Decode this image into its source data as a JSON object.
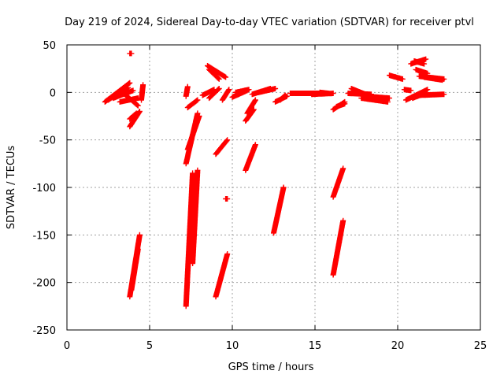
{
  "chart_data": {
    "type": "scatter",
    "title": "Day 219 of 2024, Sidereal Day-to-day VTEC variation (SDTVAR) for receiver ptvl",
    "xlabel": "GPS time / hours",
    "ylabel": "SDTVAR / TECUs",
    "xlim": [
      0,
      25
    ],
    "ylim": [
      -250,
      50
    ],
    "xticks": [
      "0",
      "5",
      "10",
      "15",
      "20",
      "25"
    ],
    "yticks": [
      "50",
      "0",
      "-50",
      "-100",
      "-150",
      "-200",
      "-250"
    ],
    "grid": true,
    "marker": "plus",
    "series": [
      {
        "color": "#ff0000",
        "arcs": [
          {
            "x0": 2.3,
            "y0": -10,
            "x1": 3.8,
            "y1": 10
          },
          {
            "x0": 2.5,
            "y0": -8,
            "x1": 3.5,
            "y1": 4
          },
          {
            "x0": 2.8,
            "y0": -6,
            "x1": 4.0,
            "y1": 2
          },
          {
            "x0": 3.0,
            "y0": -4,
            "x1": 3.7,
            "y1": 5
          },
          {
            "x0": 3.2,
            "y0": -10,
            "x1": 4.3,
            "y1": -6
          },
          {
            "x0": 3.5,
            "y0": -2,
            "x1": 4.3,
            "y1": -14
          },
          {
            "x0": 3.8,
            "y0": -36,
            "x1": 4.4,
            "y1": -20
          },
          {
            "x0": 3.8,
            "y0": -28,
            "x1": 4.2,
            "y1": -22
          },
          {
            "x0": 3.8,
            "y0": 41,
            "x1": 3.9,
            "y1": 41
          },
          {
            "x0": 4.5,
            "y0": -8,
            "x1": 4.6,
            "y1": 8
          },
          {
            "x0": 3.8,
            "y0": -215,
            "x1": 4.4,
            "y1": -150
          },
          {
            "x0": 3.9,
            "y0": -208,
            "x1": 4.3,
            "y1": -165
          },
          {
            "x0": 7.2,
            "y0": -225,
            "x1": 7.6,
            "y1": -85
          },
          {
            "x0": 7.6,
            "y0": -180,
            "x1": 7.9,
            "y1": -82
          },
          {
            "x0": 7.2,
            "y0": -75,
            "x1": 7.9,
            "y1": -22
          },
          {
            "x0": 7.3,
            "y0": -60,
            "x1": 8.0,
            "y1": -25
          },
          {
            "x0": 7.2,
            "y0": -4,
            "x1": 7.3,
            "y1": 6
          },
          {
            "x0": 7.3,
            "y0": -16,
            "x1": 7.9,
            "y1": -8
          },
          {
            "x0": 8.5,
            "y0": 28,
            "x1": 9.6,
            "y1": 16
          },
          {
            "x0": 8.6,
            "y0": 24,
            "x1": 9.2,
            "y1": 14
          },
          {
            "x0": 8.2,
            "y0": -3,
            "x1": 8.9,
            "y1": 3
          },
          {
            "x0": 8.6,
            "y0": -6,
            "x1": 9.2,
            "y1": 4
          },
          {
            "x0": 9.0,
            "y0": -215,
            "x1": 9.7,
            "y1": -170
          },
          {
            "x0": 9.0,
            "y0": -65,
            "x1": 9.7,
            "y1": -50
          },
          {
            "x0": 9.6,
            "y0": -112,
            "x1": 9.7,
            "y1": -112
          },
          {
            "x0": 9.4,
            "y0": -8,
            "x1": 9.8,
            "y1": 3
          },
          {
            "x0": 10.0,
            "y0": -5,
            "x1": 10.9,
            "y1": 2
          },
          {
            "x0": 10.2,
            "y0": 0,
            "x1": 11.0,
            "y1": 3
          },
          {
            "x0": 10.8,
            "y0": -82,
            "x1": 11.4,
            "y1": -55
          },
          {
            "x0": 10.8,
            "y0": -30,
            "x1": 11.3,
            "y1": -18
          },
          {
            "x0": 10.9,
            "y0": -22,
            "x1": 11.4,
            "y1": -8
          },
          {
            "x0": 11.2,
            "y0": -2,
            "x1": 12.3,
            "y1": 4
          },
          {
            "x0": 11.6,
            "y0": 0,
            "x1": 12.6,
            "y1": 4
          },
          {
            "x0": 12.5,
            "y0": -148,
            "x1": 13.1,
            "y1": -100
          },
          {
            "x0": 12.6,
            "y0": -10,
            "x1": 13.3,
            "y1": -4
          },
          {
            "x0": 12.9,
            "y0": -8,
            "x1": 13.2,
            "y1": -3
          },
          {
            "x0": 13.5,
            "y0": -1,
            "x1": 15.5,
            "y1": -1
          },
          {
            "x0": 14.8,
            "y0": -2,
            "x1": 16.1,
            "y1": -1
          },
          {
            "x0": 15.3,
            "y0": 0,
            "x1": 15.8,
            "y1": -1
          },
          {
            "x0": 16.1,
            "y0": -192,
            "x1": 16.7,
            "y1": -135
          },
          {
            "x0": 16.1,
            "y0": -110,
            "x1": 16.7,
            "y1": -80
          },
          {
            "x0": 16.1,
            "y0": -18,
            "x1": 16.8,
            "y1": -10
          },
          {
            "x0": 16.3,
            "y0": -15,
            "x1": 16.8,
            "y1": -12
          },
          {
            "x0": 17.0,
            "y0": -1,
            "x1": 18.4,
            "y1": -2
          },
          {
            "x0": 17.8,
            "y0": -6,
            "x1": 19.4,
            "y1": -10
          },
          {
            "x0": 18.0,
            "y0": -4,
            "x1": 19.5,
            "y1": -6
          },
          {
            "x0": 17.2,
            "y0": 4,
            "x1": 18.2,
            "y1": -3
          },
          {
            "x0": 19.5,
            "y0": 18,
            "x1": 20.3,
            "y1": 14
          },
          {
            "x0": 20.4,
            "y0": 3,
            "x1": 20.8,
            "y1": 2
          },
          {
            "x0": 20.5,
            "y0": -8,
            "x1": 21.8,
            "y1": 3
          },
          {
            "x0": 20.9,
            "y0": -6,
            "x1": 21.5,
            "y1": -2
          },
          {
            "x0": 21.3,
            "y0": -3,
            "x1": 22.8,
            "y1": -2
          },
          {
            "x0": 20.8,
            "y0": 30,
            "x1": 21.7,
            "y1": 35
          },
          {
            "x0": 21.0,
            "y0": 33,
            "x1": 21.6,
            "y1": 30
          },
          {
            "x0": 21.1,
            "y0": 24,
            "x1": 21.8,
            "y1": 20
          },
          {
            "x0": 21.3,
            "y0": 17,
            "x1": 22.8,
            "y1": 14
          },
          {
            "x0": 21.6,
            "y0": 16,
            "x1": 22.7,
            "y1": 13
          }
        ]
      }
    ]
  }
}
